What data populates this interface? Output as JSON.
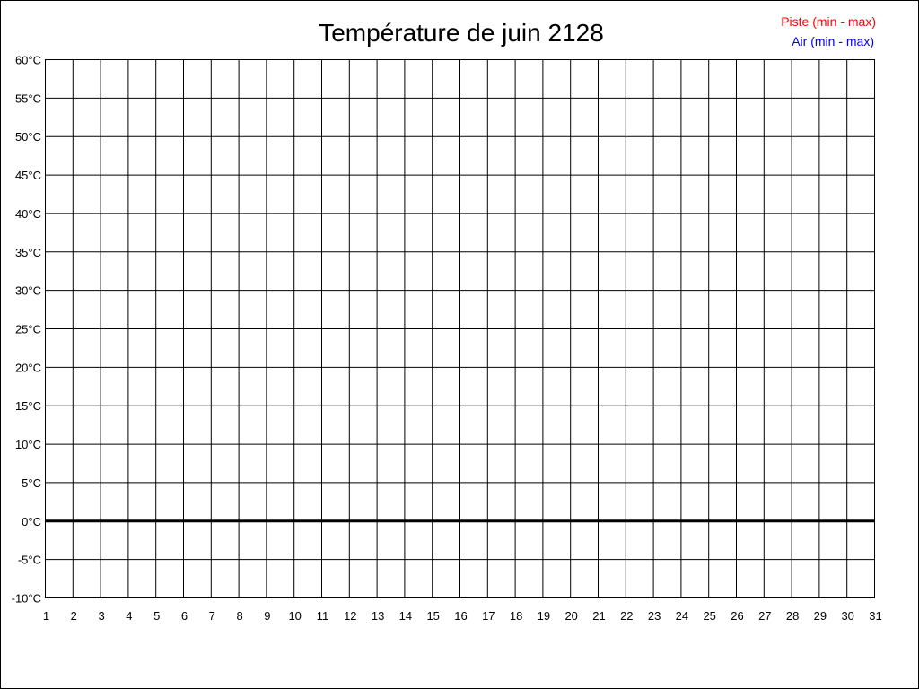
{
  "chart_data": {
    "type": "line",
    "title": "Température de juin 2128",
    "xlabel": "",
    "ylabel": "",
    "x_ticks": [
      1,
      2,
      3,
      4,
      5,
      6,
      7,
      8,
      9,
      10,
      11,
      12,
      13,
      14,
      15,
      16,
      17,
      18,
      19,
      20,
      21,
      22,
      23,
      24,
      25,
      26,
      27,
      28,
      29,
      30,
      31
    ],
    "y_ticks": [
      "60°C",
      "55°C",
      "50°C",
      "45°C",
      "40°C",
      "35°C",
      "30°C",
      "25°C",
      "20°C",
      "15°C",
      "10°C",
      "5°C",
      "0°C",
      "-5°C",
      "-10°C"
    ],
    "xlim": [
      1,
      31
    ],
    "ylim": [
      -10,
      60
    ],
    "grid": true,
    "legend_position": "top-right",
    "series": [
      {
        "name": "Piste (min - max)",
        "color": "#ff0000",
        "values": []
      },
      {
        "name": "Air (min - max)",
        "color": "#0000ff",
        "values": []
      }
    ]
  }
}
